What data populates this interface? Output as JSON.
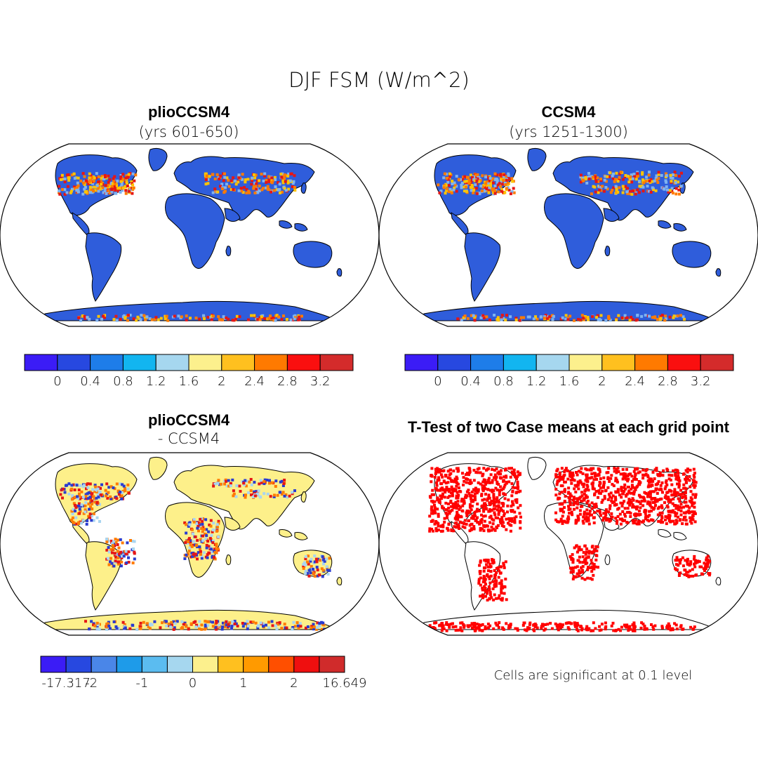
{
  "title": "DJF FSM (W/m^2)",
  "panels": [
    {
      "id": "plio",
      "title": "plioCCSM4",
      "subtitle": "(yrs 601-650)",
      "land_color": "#2f5ddb",
      "snow_colors": [
        "#e51616",
        "#ff7b00",
        "#ffc400",
        "#7fb3f0"
      ]
    },
    {
      "id": "ccsm",
      "title": "CCSM4",
      "subtitle": "(yrs 1251-1300)",
      "land_color": "#2f5ddb",
      "snow_colors": [
        "#e51616",
        "#ff7b00",
        "#ffc400",
        "#7fb3f0"
      ]
    },
    {
      "id": "diff",
      "title": "plioCCSM4",
      "subtitle": "- CCSM4",
      "land_color": "#fdf08a",
      "snow_colors": [
        "#a9d5f0",
        "#e51616",
        "#ff7b00",
        "#2a3ccf"
      ]
    },
    {
      "id": "ttest",
      "title": "T-Test of two Case means at each grid point",
      "subtitle": "",
      "land_color": "#ffffff",
      "snow_colors": [
        "#ff0000"
      ]
    }
  ],
  "colorbars": {
    "top_left": {
      "colors": [
        "#3b1cf6",
        "#2748e0",
        "#1e7de9",
        "#12b5f0",
        "#a6d7ef",
        "#fcf08d",
        "#ffc01f",
        "#ff7a00",
        "#fa0f0f",
        "#d42b2b"
      ],
      "labels": [
        "0",
        "0.4",
        "0.8",
        "1.2",
        "1.6",
        "2",
        "2.4",
        "2.8",
        "3.2"
      ]
    },
    "top_right": {
      "colors": [
        "#3b1cf6",
        "#2748e0",
        "#1e7de9",
        "#12b5f0",
        "#a6d7ef",
        "#fcf08d",
        "#ffc01f",
        "#ff7a00",
        "#fa0f0f",
        "#d42b2b"
      ],
      "labels": [
        "0",
        "0.4",
        "0.8",
        "1.2",
        "1.6",
        "2",
        "2.4",
        "2.8",
        "3.2"
      ]
    },
    "bottom_left": {
      "colors": [
        "#3b1cf6",
        "#2748e0",
        "#4a86e8",
        "#1e9be9",
        "#5bbcf0",
        "#a6d7ef",
        "#fcf08d",
        "#ffc01f",
        "#ff9a00",
        "#ff4f00",
        "#ef0f0f",
        "#d02b2b"
      ],
      "labels": [
        "-17.317",
        "-2",
        "",
        "-1",
        "",
        "0",
        "",
        "1",
        "",
        "2",
        "",
        "16.649"
      ]
    }
  },
  "note": "Cells are significant at 0.1 level"
}
